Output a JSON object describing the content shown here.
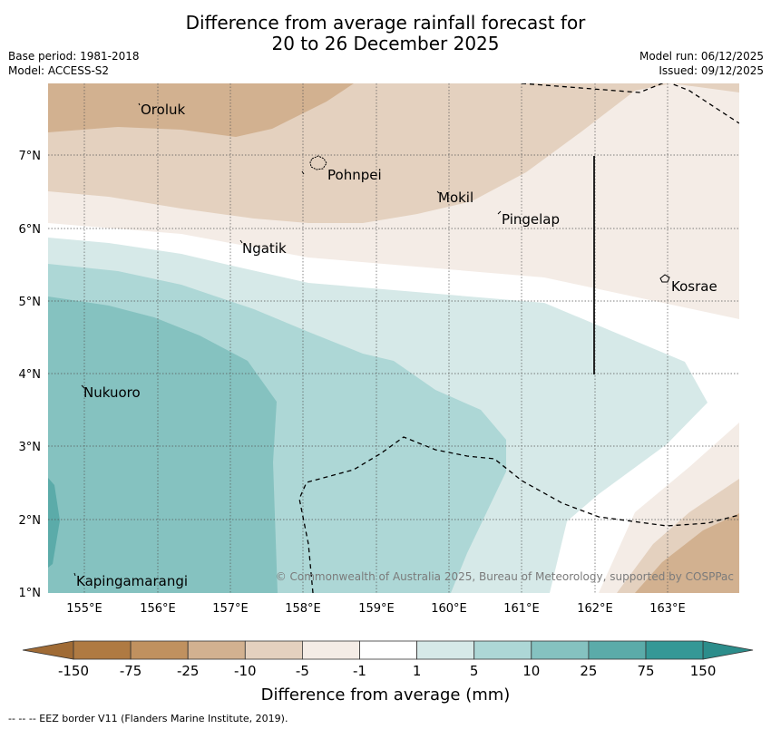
{
  "title": {
    "line1": "Difference from average rainfall forecast for",
    "line2": "20 to 26 December 2025"
  },
  "meta": {
    "base_period": "Base period: 1981-2018",
    "model": "Model: ACCESS-S2",
    "model_run": "Model run: 06/12/2025",
    "issued": "Issued: 09/12/2025"
  },
  "map": {
    "lat_labels": [
      "1°N",
      "2°N",
      "3°N",
      "4°N",
      "5°N",
      "6°N",
      "7°N"
    ],
    "lon_labels": [
      "155°E",
      "156°E",
      "157°E",
      "158°E",
      "159°E",
      "160°E",
      "161°E",
      "162°E",
      "163°E"
    ],
    "places": [
      {
        "name": "Oroluk"
      },
      {
        "name": "Pohnpei"
      },
      {
        "name": "Mokil"
      },
      {
        "name": "Pingelap"
      },
      {
        "name": "Ngatik"
      },
      {
        "name": "Kosrae"
      },
      {
        "name": "Nukuoro"
      },
      {
        "name": "Kapingamarangi"
      }
    ],
    "copyright": "© Commonwealth of Australia 2025, Bureau of Meteorology, supported by COSPPac"
  },
  "legend": {
    "ticks": [
      "-150",
      "-75",
      "-25",
      "-10",
      "-5",
      "-1",
      "1",
      "5",
      "10",
      "25",
      "75",
      "150"
    ],
    "colors": [
      "#af7a42",
      "#c0915f",
      "#d2b190",
      "#e4d1bf",
      "#f4ece6",
      "#ffffff",
      "#d6e9e8",
      "#add7d6",
      "#85c2c0",
      "#5baba9",
      "#359896"
    ],
    "label": "Difference from average (mm)"
  },
  "footnote": "--  --  -- EEZ border V11 (Flanders Marine Institute, 2019)."
}
